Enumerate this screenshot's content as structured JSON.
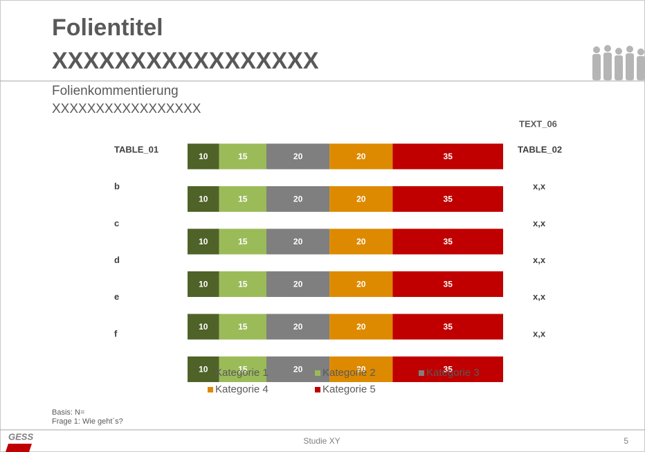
{
  "slide": {
    "title_lines": [
      "Folientitel",
      "XXXXXXXXXXXXXXXXX"
    ],
    "comment_lines": [
      "Folienkommentierung",
      "XXXXXXXXXXXXXXXXX"
    ],
    "notes": [
      "Basis: N=",
      "Frage 1: Wie geht´s?"
    ],
    "logo": "GESS",
    "footer": "Studie XY",
    "page_number": "5"
  },
  "side_table": {
    "header": "TEXT_06",
    "rows": [
      "TABLE_02",
      "x,x",
      "x,x",
      "x,x",
      "x,x",
      "x,x"
    ]
  },
  "chart_data": {
    "type": "stacked-bar-horizontal",
    "categories": [
      "TABLE_01",
      "b",
      "c",
      "d",
      "e",
      "f"
    ],
    "xlim": [
      0,
      100
    ],
    "series": [
      {
        "name": "Kategorie 1",
        "color": "#4f6228",
        "values": [
          10,
          10,
          10,
          10,
          10,
          10
        ]
      },
      {
        "name": "Kategorie 2",
        "color": "#9bbb59",
        "values": [
          15,
          15,
          15,
          15,
          15,
          15
        ]
      },
      {
        "name": "Kategorie 3",
        "color": "#7f7f7f",
        "values": [
          20,
          20,
          20,
          20,
          20,
          20
        ]
      },
      {
        "name": "Kategorie 4",
        "color": "#dd8a00",
        "values": [
          20,
          20,
          20,
          20,
          20,
          20
        ]
      },
      {
        "name": "Kategorie 5",
        "color": "#c00000",
        "values": [
          35,
          35,
          35,
          35,
          35,
          35
        ]
      }
    ]
  }
}
